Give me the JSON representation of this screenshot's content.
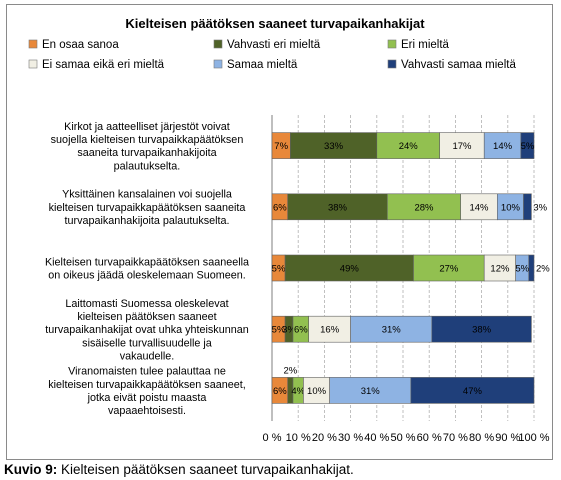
{
  "caption": {
    "label": "Kuvio 9:",
    "text": "Kielteisen päätöksen saaneet turvapaikanhakijat."
  },
  "chart_data": {
    "type": "bar",
    "orientation": "horizontal",
    "stacked": true,
    "title": "Kielteisen päätöksen saaneet turvapaikanhakijat",
    "xlim": [
      0,
      100
    ],
    "x_ticks": [
      "0 %",
      "10 %",
      "20 %",
      "30 %",
      "40 %",
      "50 %",
      "60 %",
      "70 %",
      "80 %",
      "90 %",
      "100 %"
    ],
    "grid": "vertical",
    "legend_position": "top",
    "categories": [
      "Kirkot ja aatteelliset järjestöt voivat suojella kielteisen turvapaikkapäätöksen saaneita turvapaikanhakijoita palautukselta.",
      "Yksittäinen kansalainen voi suojella kielteisen turvapaikkapäätöksen saaneita turvapaikanhakijoita palautukselta.",
      "Kielteisen turvapaikkapäätöksen saaneella on oikeus jäädä oleskelemaan Suomeen.",
      "Laittomasti Suomessa oleskelevat kielteisen päätöksen saaneet turvapaikanhakijat ovat uhka yhteiskunnan sisäiselle turvallisuudelle ja vakaudelle.",
      "Viranomaisten tulee palauttaa ne kielteisen turvapaikkapäätöksen saaneet, jotka eivät poistu maasta vapaaehtoisesti."
    ],
    "series": [
      {
        "name": "En osaa sanoa",
        "color": "#e8883a",
        "values": [
          7,
          6,
          5,
          5,
          6
        ]
      },
      {
        "name": "Vahvasti eri mieltä",
        "color": "#4f6228",
        "values": [
          33,
          38,
          49,
          3,
          2
        ]
      },
      {
        "name": "Eri mieltä",
        "color": "#92c050",
        "values": [
          24,
          28,
          27,
          6,
          4
        ]
      },
      {
        "name": "Ei samaa eikä eri mieltä",
        "color": "#f1efe4",
        "values": [
          17,
          14,
          12,
          16,
          10
        ]
      },
      {
        "name": "Samaa mieltä",
        "color": "#8eb3e3",
        "values": [
          14,
          10,
          5,
          31,
          31
        ]
      },
      {
        "name": "Vahvasti samaa mieltä",
        "color": "#1f3f7a",
        "values": [
          5,
          3,
          2,
          38,
          47
        ]
      }
    ]
  }
}
